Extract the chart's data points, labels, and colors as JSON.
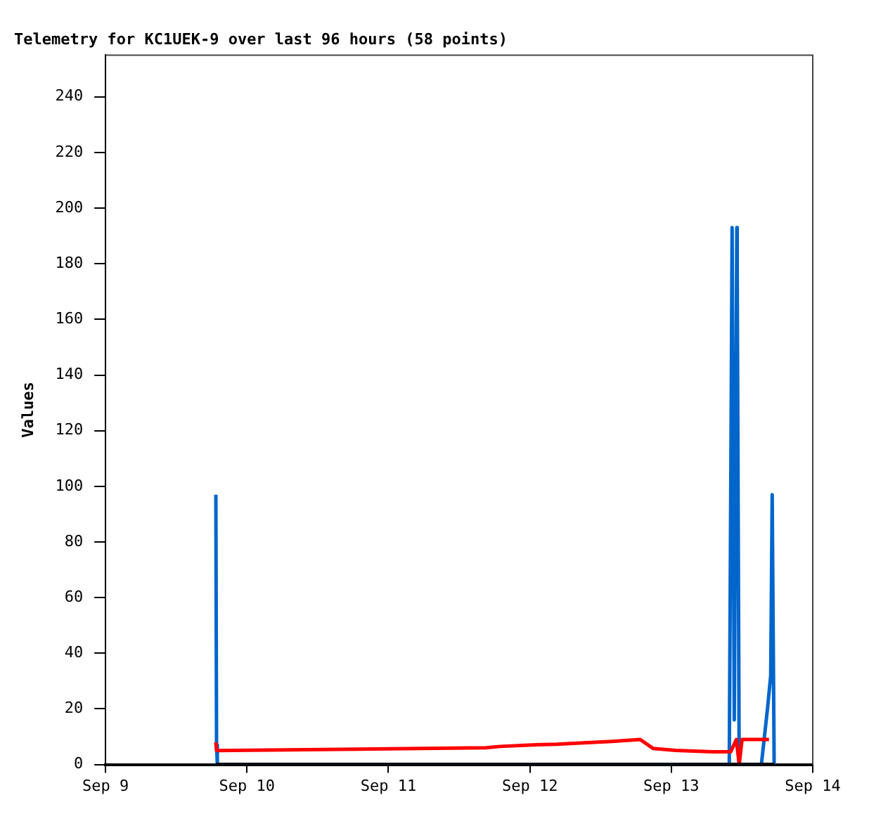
{
  "chart_data": {
    "type": "line",
    "title": "Telemetry for KC1UEK-9 over last 96 hours (58 points)",
    "ylabel": "Values",
    "xlim": [
      "--09-09",
      "--09-14"
    ],
    "xticks": [
      {
        "value": "--09-09",
        "label": "Sep 9"
      },
      {
        "value": "--09-10",
        "label": "Sep 10"
      },
      {
        "value": "--09-11",
        "label": "Sep 11"
      },
      {
        "value": "--09-12",
        "label": "Sep 12"
      },
      {
        "value": "--09-13",
        "label": "Sep 13"
      },
      {
        "value": "--09-14",
        "label": "Sep 14"
      }
    ],
    "ylim": [
      0,
      255
    ],
    "yticks": [
      0,
      20,
      40,
      60,
      80,
      100,
      120,
      140,
      160,
      180,
      200,
      220,
      240
    ],
    "grid": false,
    "legend": false,
    "marker": "none",
    "line_style": "solid",
    "series": [
      {
        "color": "#000000",
        "x": [
          "--09-09T18:43",
          "--09-13T17:31"
        ],
        "values": [
          0,
          0
        ]
      },
      {
        "color": "#ff0000",
        "x": [
          "--09-09T18:43",
          "--09-09T18:50",
          "--09-11T16:34",
          "--09-11T18:58",
          "--09-11T23:46",
          "--09-12T04:34",
          "--09-12T09:07",
          "--09-12T13:55",
          "--09-12T18:43",
          "--09-12T20:53",
          "--09-13T00:43",
          "--09-13T06:58",
          "--09-13T10:05",
          "--09-13T11:02",
          "--09-13T11:31",
          "--09-13T12:00",
          "--09-13T16:34"
        ],
        "values": [
          8,
          5,
          6,
          6.5,
          7,
          7.3,
          7.8,
          8.3,
          9,
          5.8,
          5.1,
          4.6,
          4.6,
          9,
          0,
          9,
          9
        ]
      },
      {
        "color": "#0066cc",
        "x": [
          "--09-09T18:43",
          "--09-09T18:50",
          "--09-09T18:58",
          "--09-13T09:50",
          "--09-13T10:05",
          "--09-13T10:19",
          "--09-13T10:41",
          "--09-13T11:07",
          "--09-13T11:11",
          "--09-13T11:31",
          "--09-13T15:17",
          "--09-13T16:19",
          "--09-13T16:52",
          "--09-13T17:07",
          "--09-13T17:27"
        ],
        "values": [
          97,
          7,
          0,
          0,
          97,
          193,
          16,
          193,
          177,
          0,
          0,
          20,
          32,
          97,
          0
        ]
      }
    ]
  }
}
